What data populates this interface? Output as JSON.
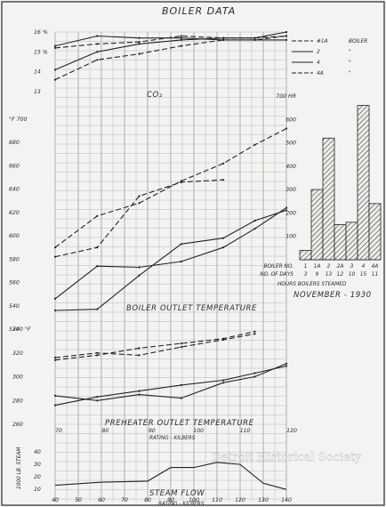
{
  "title": "BOILER DATA",
  "watermark": "Detroit Historical Society",
  "chart_data": [
    {
      "type": "line",
      "title": "",
      "label": "CO₂",
      "ylabel": "%",
      "y_ticks": [
        "16 %",
        "15 %",
        "14",
        "13"
      ],
      "ylim": [
        13,
        16
      ],
      "x": [
        40,
        60,
        80,
        100,
        120,
        135,
        150
      ],
      "series": [
        {
          "name": "#1A BOILER",
          "style": "dashed",
          "values": [
            15.2,
            15.4,
            15.5,
            15.8,
            15.7,
            15.7,
            15.8
          ]
        },
        {
          "name": "2",
          "style": "solid",
          "values": [
            15.3,
            15.8,
            15.7,
            15.7,
            15.6,
            15.6,
            15.6
          ]
        },
        {
          "name": "4",
          "style": "solid",
          "values": [
            14.1,
            15.0,
            15.4,
            15.6,
            15.7,
            15.7,
            16.0
          ]
        },
        {
          "name": "4A",
          "style": "dashed",
          "values": [
            13.6,
            14.6,
            14.9,
            15.3,
            15.6,
            15.6,
            15.8
          ]
        }
      ],
      "legend": [
        {
          "name": "#1A",
          "suffix": "BOILER"
        },
        {
          "name": "2",
          "suffix": "\""
        },
        {
          "name": "4",
          "suffix": "\""
        },
        {
          "name": "4A",
          "suffix": "\""
        }
      ]
    },
    {
      "type": "line",
      "title": "BOILER OUTLET TEMPERATURE",
      "ylabel": "°F",
      "y_ticks": [
        "°F 700",
        "680",
        "660",
        "640",
        "620",
        "600",
        "580",
        "560",
        "540",
        "520"
      ],
      "ylim": [
        520,
        700
      ],
      "x": [
        40,
        60,
        80,
        100,
        120,
        135,
        150
      ],
      "series": [
        {
          "name": "#1A",
          "style": "dashed",
          "values": [
            590,
            617,
            628,
            647,
            662,
            678,
            692
          ]
        },
        {
          "name": "2",
          "style": "dashed",
          "values": [
            582,
            590,
            634,
            646,
            648,
            null,
            null
          ]
        },
        {
          "name": "4",
          "style": "solid",
          "values": [
            546,
            574,
            573,
            578,
            590,
            606,
            624
          ]
        },
        {
          "name": "4A",
          "style": "solid",
          "values": [
            536,
            537,
            566,
            593,
            598,
            613,
            622
          ]
        }
      ]
    },
    {
      "type": "line",
      "title": "PREHEATER OUTLET TEMPERATURE",
      "xlabel": "RATING - KILBERS",
      "ylabel": "°F",
      "y_ticks": [
        "340 °F",
        "320",
        "300",
        "280",
        "260"
      ],
      "ylim": [
        260,
        340
      ],
      "x_ticks": [
        70,
        80,
        90,
        100,
        110,
        120
      ],
      "x": [
        40,
        60,
        80,
        100,
        120,
        135,
        150
      ],
      "series": [
        {
          "name": "#1A",
          "style": "dashed",
          "values": [
            316,
            320,
            318,
            325,
            331,
            336,
            null
          ]
        },
        {
          "name": "2",
          "style": "dashed",
          "values": [
            314,
            318,
            324,
            328,
            332,
            338,
            null
          ]
        },
        {
          "name": "4",
          "style": "solid",
          "values": [
            284,
            280,
            285,
            282,
            295,
            300,
            311
          ]
        },
        {
          "name": "4A",
          "style": "solid",
          "values": [
            276,
            283,
            288,
            293,
            297,
            303,
            309
          ]
        }
      ]
    },
    {
      "type": "line",
      "title": "STEAM FLOW",
      "xlabel": "RATING - KILBERS",
      "ylabel": "1000 LB. STEAM",
      "y_ticks": [
        "40",
        "30",
        "20",
        "10"
      ],
      "ylim": [
        0,
        40
      ],
      "x_ticks": [
        40,
        50,
        60,
        70,
        80,
        90,
        100,
        110,
        120,
        130,
        140
      ],
      "x": [
        40,
        60,
        80,
        90,
        100,
        110,
        120,
        130,
        140
      ],
      "series": [
        {
          "name": "steam flow",
          "style": "solid",
          "values": [
            8,
            11,
            12,
            25,
            25,
            30,
            28,
            10,
            4
          ]
        }
      ]
    },
    {
      "type": "bar",
      "title": "HOURS BOILERS STEAMED",
      "subtitle": "NOVEMBER - 1930",
      "y_ticks": [
        "700 HR",
        "600",
        "500",
        "400",
        "300",
        "200",
        "100"
      ],
      "ylim": [
        0,
        700
      ],
      "row_labels": [
        "BOILER NO.",
        "NO. OF DAYS"
      ],
      "categories": [
        "1",
        "1A",
        "2",
        "2A",
        "3",
        "4",
        "4A"
      ],
      "days": [
        "3",
        "9",
        "13",
        "12",
        "10",
        "15",
        "11"
      ],
      "values": [
        40,
        300,
        520,
        150,
        160,
        660,
        240
      ]
    }
  ]
}
